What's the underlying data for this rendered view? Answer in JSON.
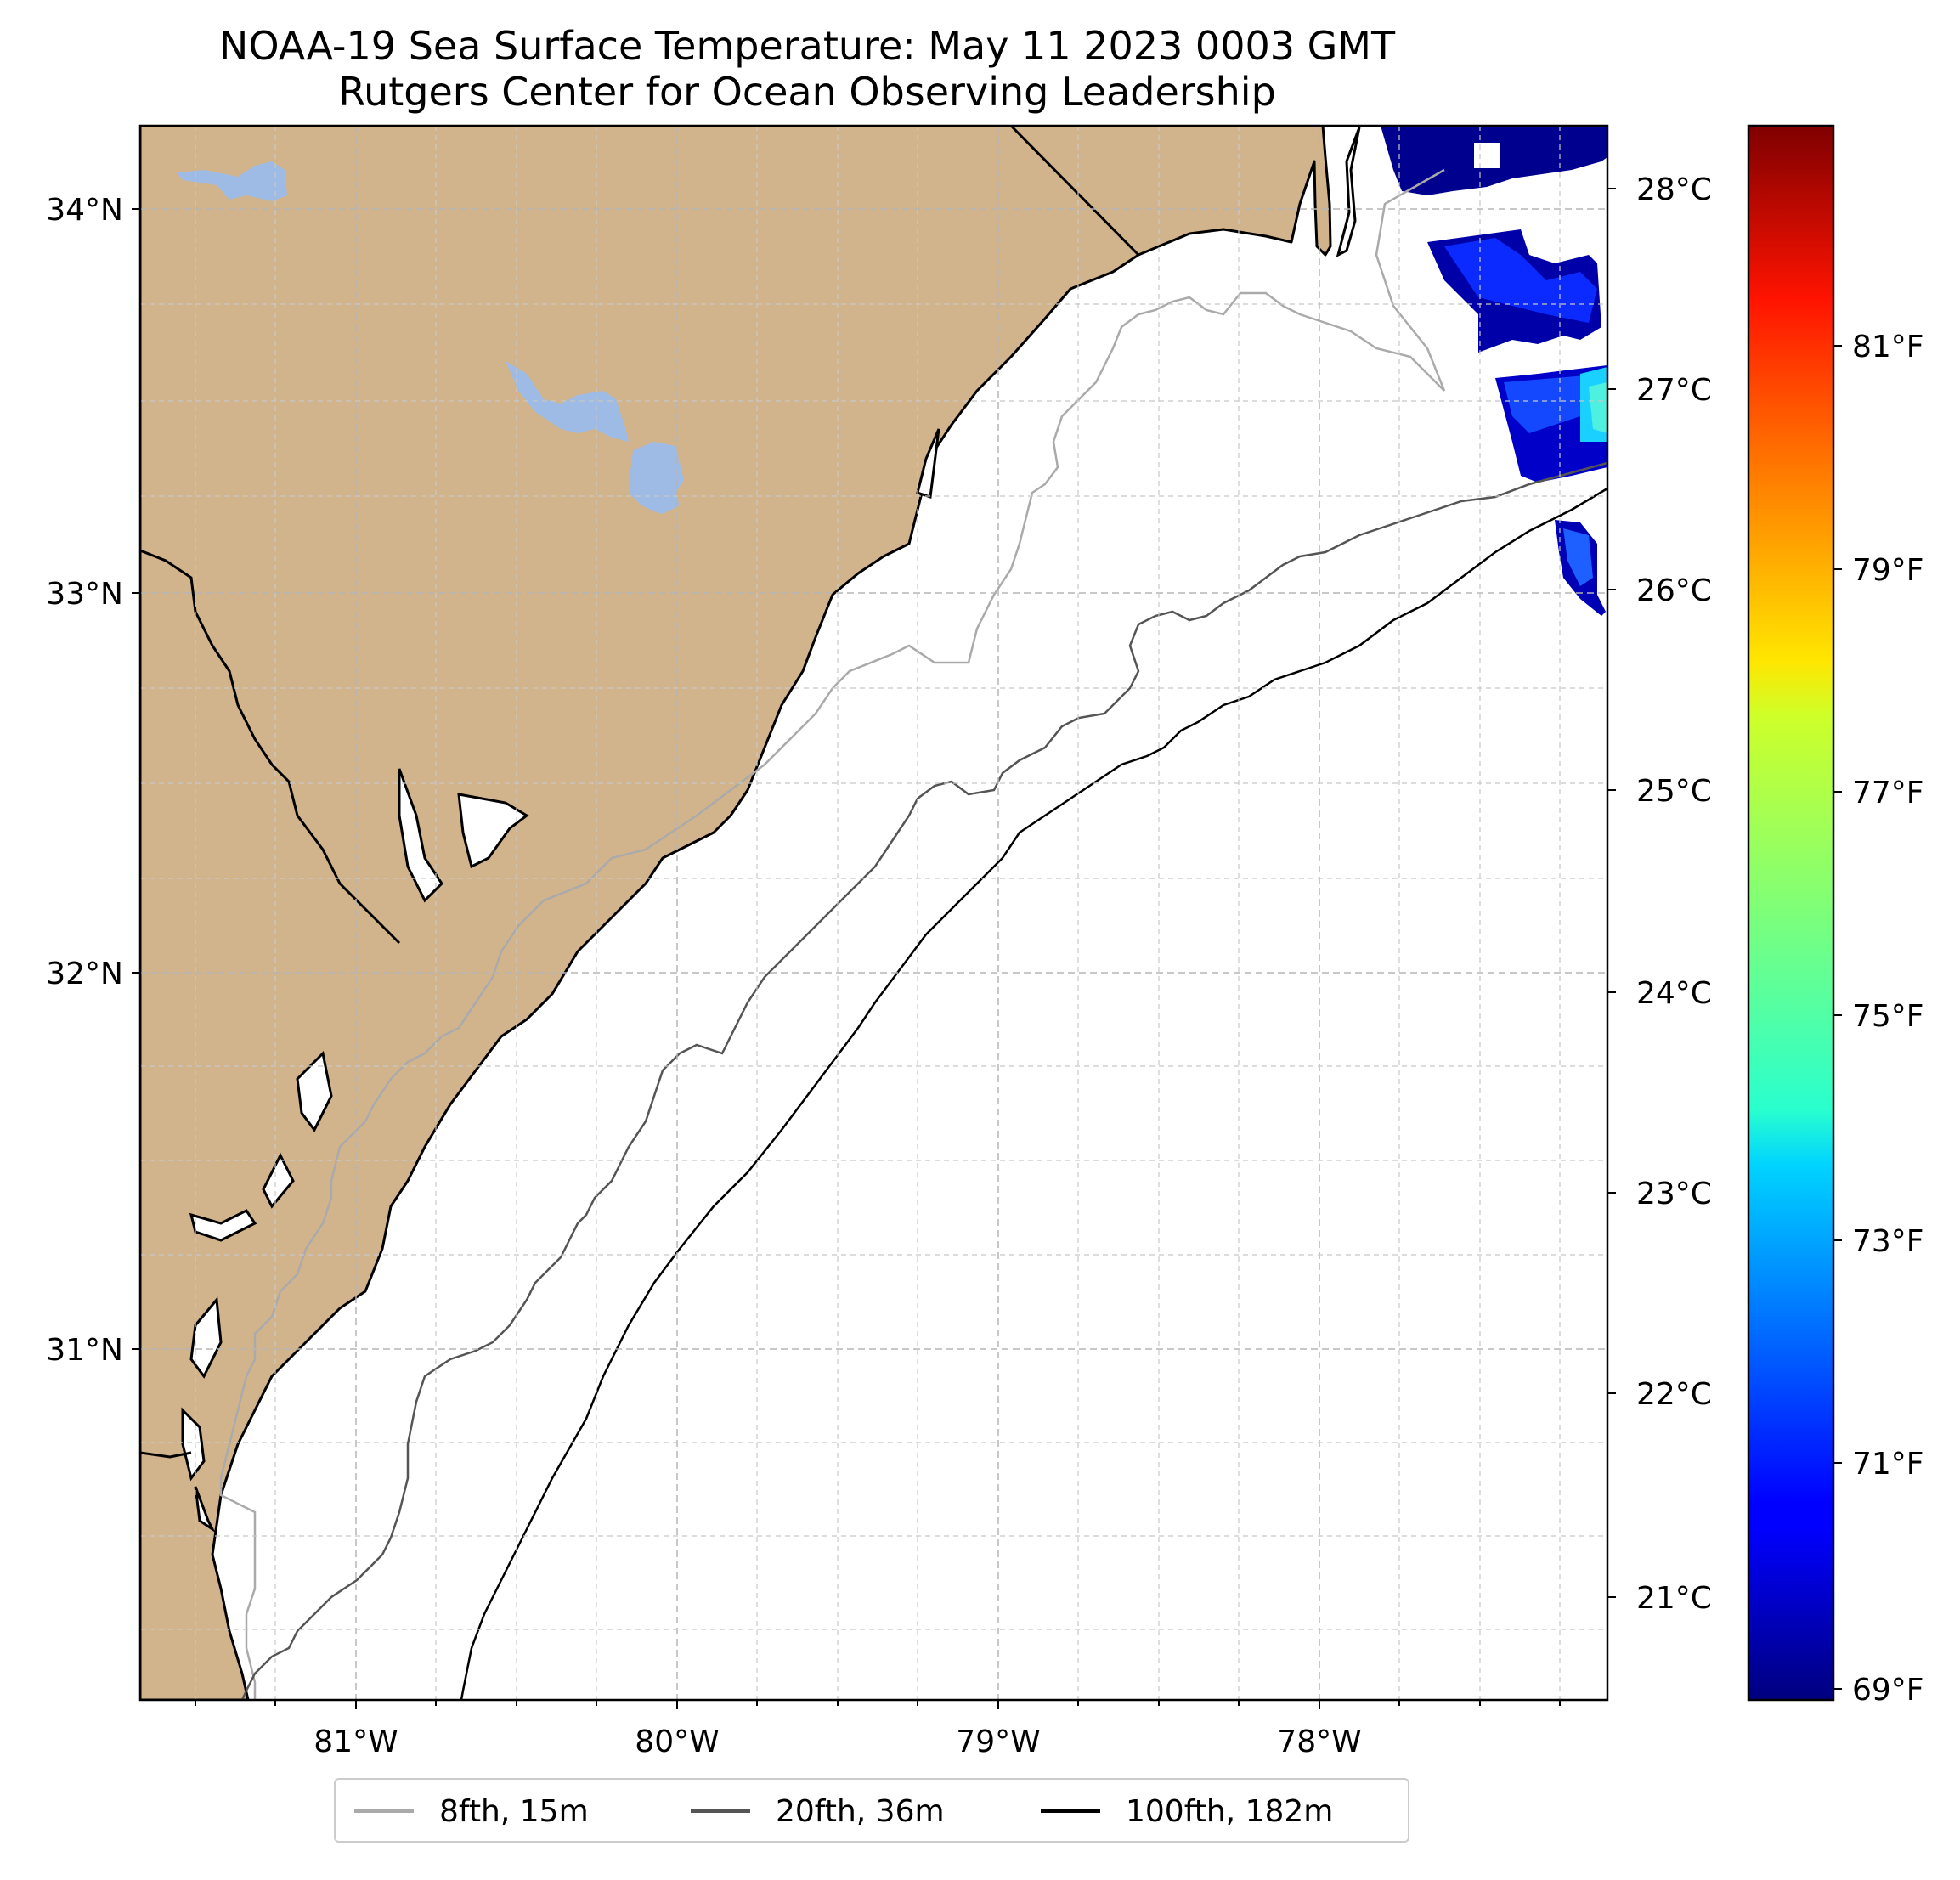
{
  "title": {
    "line1": "NOAA-19 Sea Surface Temperature: May 11 2023 0003 GMT",
    "line2": "Rutgers Center for Ocean Observing Leadership"
  },
  "map": {
    "land_color": "#d2b48c",
    "water_color": "#9dbbe4",
    "ocean_color": "#ffffff",
    "lat_labels": [
      "34°N",
      "33°N",
      "32°N",
      "31°N"
    ],
    "lon_labels": [
      "81°W",
      "80°W",
      "79°W",
      "78°W"
    ]
  },
  "colorbar": {
    "colormap": "jet",
    "celsius_labels": [
      "28°C",
      "27°C",
      "26°C",
      "25°C",
      "24°C",
      "23°C",
      "22°C",
      "21°C"
    ],
    "fahrenheit_labels": [
      "81°F",
      "79°F",
      "77°F",
      "75°F",
      "73°F",
      "71°F",
      "69°F"
    ],
    "celsius_range": [
      20.5,
      28.4
    ]
  },
  "legend": {
    "items": [
      {
        "label": "8fth, 15m",
        "color": "#aaaaaa"
      },
      {
        "label": "20fth, 36m",
        "color": "#555555"
      },
      {
        "label": "100fth, 182m",
        "color": "#000000"
      }
    ]
  },
  "chart_data": {
    "type": "heatmap",
    "title": "NOAA-19 Sea Surface Temperature: May 11 2023 0003 GMT",
    "subtitle": "Rutgers Center for Ocean Observing Leadership",
    "xlim_lon": [
      -81.67,
      -77.1
    ],
    "ylim_lat": [
      30.1,
      34.23
    ],
    "value_units": "°C",
    "colorbar_range_c": [
      20.5,
      28.4
    ],
    "observed_sst_c": [
      20.5,
      23.0
    ],
    "depth_contours": [
      "8fth, 15m",
      "20fth, 36m",
      "100fth, 182m"
    ]
  }
}
